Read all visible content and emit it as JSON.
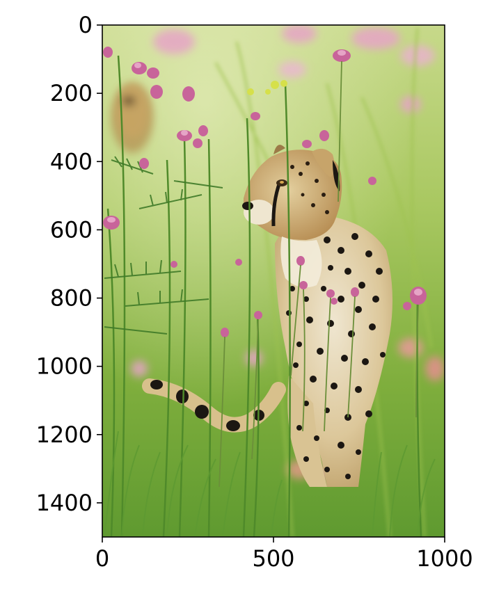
{
  "figure": {
    "image_subject": "cheetah in tall grass with pink wildflowers",
    "image_size": {
      "width": 1000,
      "height": 1500
    },
    "colors": {
      "grass_light": "#b9d36a",
      "grass_mid": "#7fae3d",
      "grass_dark": "#3f6e22",
      "flower_pink": "#c8649a",
      "flower_light": "#e6a4c6",
      "cheetah_fur": "#d8c08c",
      "cheetah_cream": "#efe6d0",
      "cheetah_spot": "#1c1712"
    }
  },
  "axes": {
    "x": {
      "ticks": [
        0,
        500,
        1000
      ],
      "tick_labels": [
        "0",
        "500",
        "1000"
      ],
      "range": [
        0,
        1000
      ]
    },
    "y": {
      "ticks": [
        0,
        200,
        400,
        600,
        800,
        1000,
        1200,
        1400
      ],
      "tick_labels": [
        "0",
        "200",
        "400",
        "600",
        "800",
        "1000",
        "1200",
        "1400"
      ],
      "range": [
        0,
        1500
      ],
      "inverted": true
    }
  }
}
